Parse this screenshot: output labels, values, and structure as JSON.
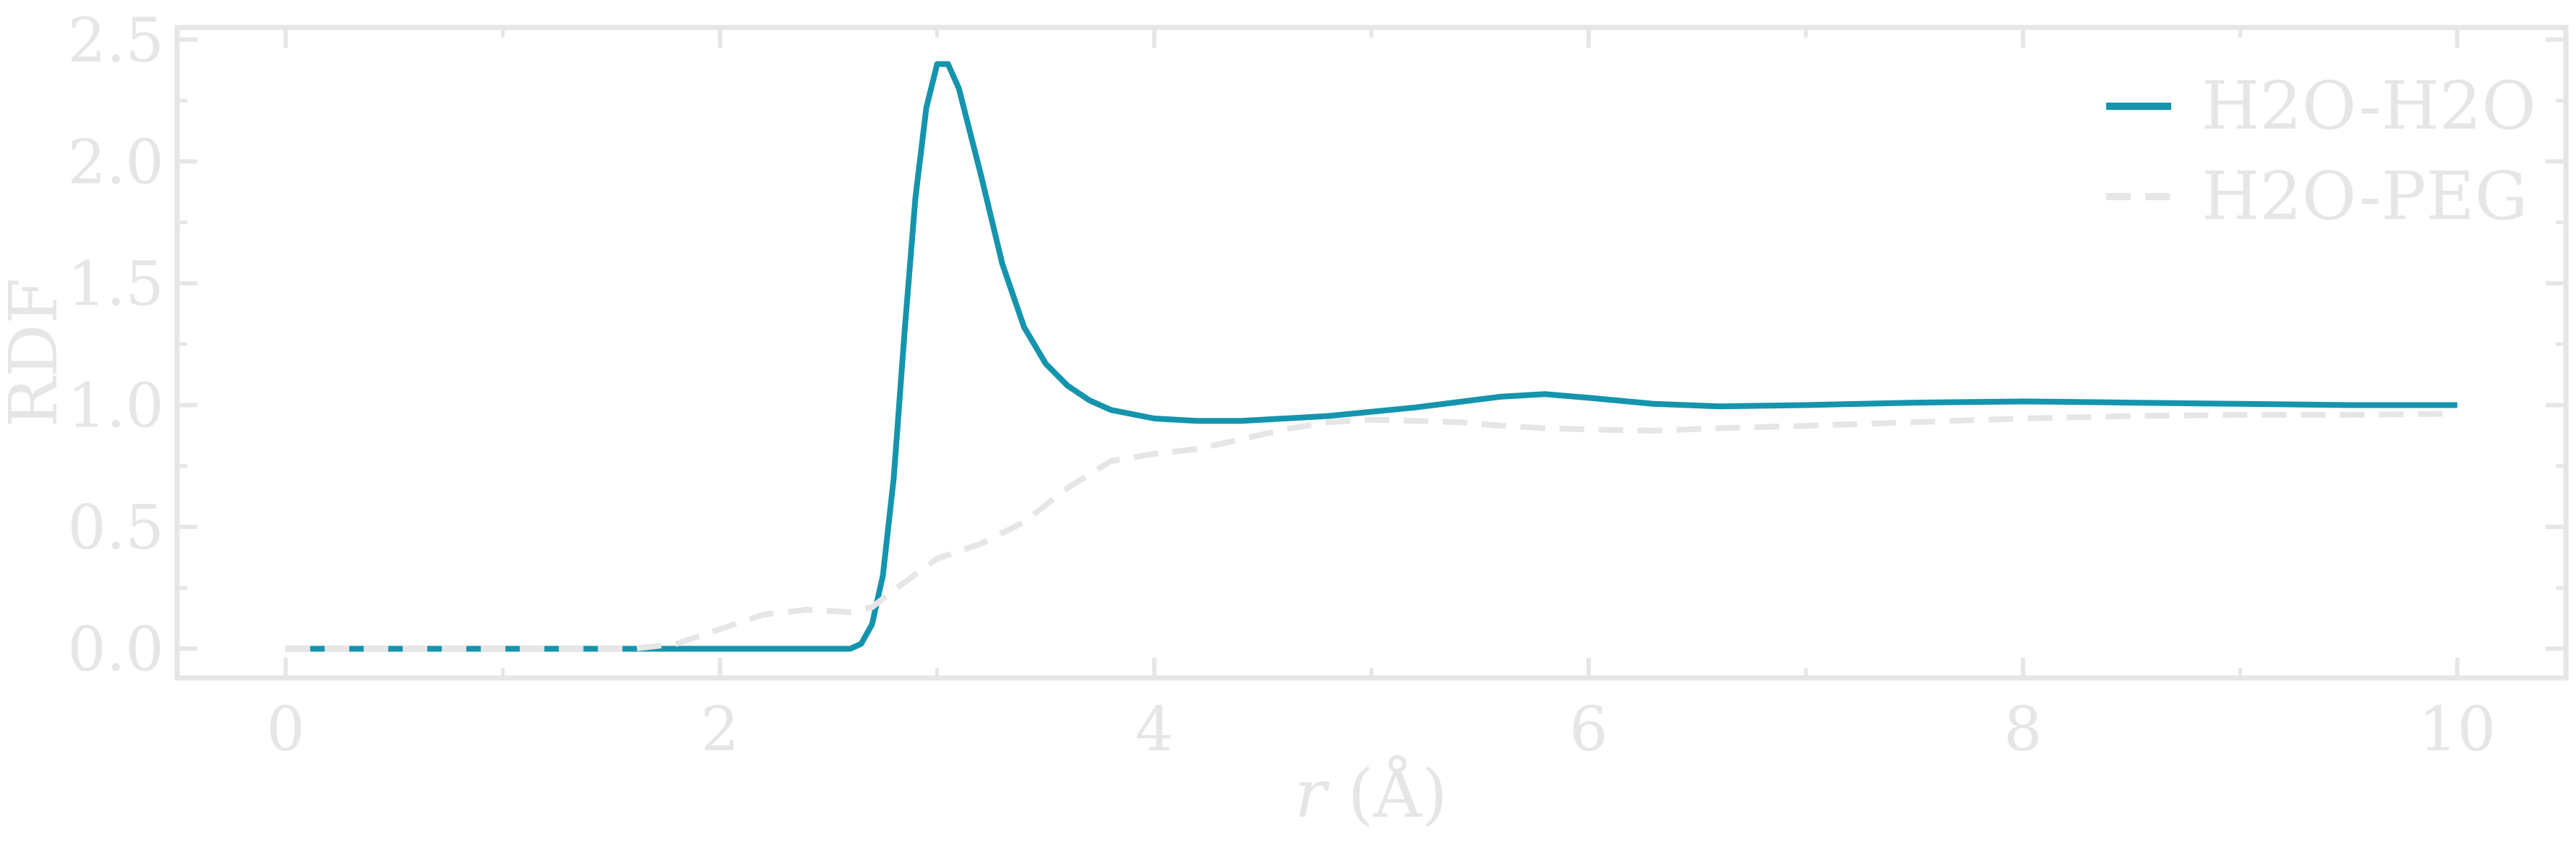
{
  "chart_data": {
    "type": "line",
    "xlabel_italic": "r",
    "xlabel_rest": " (Å)",
    "ylabel": "RDF",
    "xlim": [
      -0.5,
      10.5
    ],
    "ylim": [
      -0.12,
      2.55
    ],
    "xticks": [
      0,
      2,
      4,
      6,
      8,
      10
    ],
    "xtick_labels": [
      "0",
      "2",
      "4",
      "6",
      "8",
      "10"
    ],
    "yticks": [
      0.0,
      0.5,
      1.0,
      1.5,
      2.0,
      2.5
    ],
    "ytick_labels": [
      "0.0",
      "0.5",
      "1.0",
      "1.5",
      "2.0",
      "2.5"
    ],
    "x_minor_step": 1,
    "y_minor_step": 0.25,
    "grid": false,
    "legend_position": "top-right",
    "colors": {
      "axis": "#e6e6e6",
      "background": "#ffffff"
    },
    "series": [
      {
        "name": "H2O-H2O",
        "color": "#1594ad",
        "dash": "solid",
        "x": [
          0.0,
          2.6,
          2.65,
          2.7,
          2.75,
          2.8,
          2.85,
          2.9,
          2.95,
          3.0,
          3.05,
          3.1,
          3.2,
          3.3,
          3.4,
          3.5,
          3.6,
          3.7,
          3.8,
          4.0,
          4.2,
          4.4,
          4.8,
          5.2,
          5.6,
          5.8,
          6.0,
          6.3,
          6.6,
          7.0,
          7.5,
          8.0,
          8.5,
          9.0,
          9.5,
          10.0
        ],
        "y": [
          0.0,
          0.0,
          0.02,
          0.1,
          0.3,
          0.7,
          1.3,
          1.85,
          2.22,
          2.4,
          2.4,
          2.3,
          1.95,
          1.58,
          1.32,
          1.17,
          1.08,
          1.02,
          0.98,
          0.945,
          0.935,
          0.935,
          0.955,
          0.99,
          1.035,
          1.045,
          1.03,
          1.005,
          0.995,
          1.0,
          1.01,
          1.015,
          1.01,
          1.005,
          1.0,
          1.0
        ]
      },
      {
        "name": "H2O-PEG",
        "color": "#e6e6e6",
        "dash": "dashed",
        "x": [
          0.0,
          1.6,
          1.8,
          2.0,
          2.2,
          2.4,
          2.6,
          2.7,
          2.8,
          3.0,
          3.2,
          3.4,
          3.6,
          3.8,
          4.0,
          4.2,
          4.4,
          4.6,
          4.8,
          5.0,
          5.2,
          5.4,
          5.6,
          5.8,
          6.0,
          6.3,
          6.6,
          7.0,
          7.5,
          8.0,
          8.5,
          9.0,
          9.5,
          10.0
        ],
        "y": [
          0.0,
          0.0,
          0.02,
          0.08,
          0.14,
          0.16,
          0.15,
          0.17,
          0.24,
          0.37,
          0.43,
          0.52,
          0.66,
          0.77,
          0.8,
          0.82,
          0.86,
          0.9,
          0.93,
          0.94,
          0.935,
          0.93,
          0.915,
          0.905,
          0.9,
          0.895,
          0.905,
          0.915,
          0.93,
          0.945,
          0.955,
          0.96,
          0.96,
          0.965
        ]
      }
    ]
  }
}
